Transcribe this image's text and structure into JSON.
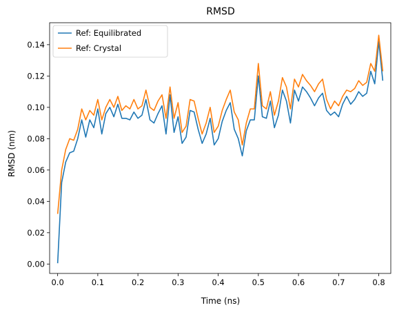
{
  "chart_data": {
    "type": "line",
    "title": "RMSD",
    "xlabel": "Time (ns)",
    "ylabel": "RMSD (nm)",
    "xlim": [
      -0.02,
      0.83
    ],
    "ylim": [
      -0.006,
      0.154
    ],
    "xticks": [
      0.0,
      0.1,
      0.2,
      0.3,
      0.4,
      0.5,
      0.6,
      0.7,
      0.8
    ],
    "xtick_labels": [
      "0.0",
      "0.1",
      "0.2",
      "0.3",
      "0.4",
      "0.5",
      "0.6",
      "0.7",
      "0.8"
    ],
    "yticks": [
      0.0,
      0.02,
      0.04,
      0.06,
      0.08,
      0.1,
      0.12,
      0.14
    ],
    "ytick_labels": [
      "0.00",
      "0.02",
      "0.04",
      "0.06",
      "0.08",
      "0.10",
      "0.12",
      "0.14"
    ],
    "legend_position": "upper-left",
    "grid": false,
    "x": [
      0.0,
      0.01,
      0.02,
      0.03,
      0.04,
      0.05,
      0.06,
      0.07,
      0.08,
      0.09,
      0.1,
      0.11,
      0.12,
      0.13,
      0.14,
      0.15,
      0.16,
      0.17,
      0.18,
      0.19,
      0.2,
      0.21,
      0.22,
      0.23,
      0.24,
      0.25,
      0.26,
      0.27,
      0.28,
      0.29,
      0.3,
      0.31,
      0.32,
      0.33,
      0.34,
      0.35,
      0.36,
      0.37,
      0.38,
      0.39,
      0.4,
      0.41,
      0.42,
      0.43,
      0.44,
      0.45,
      0.46,
      0.47,
      0.48,
      0.49,
      0.5,
      0.51,
      0.52,
      0.53,
      0.54,
      0.55,
      0.56,
      0.57,
      0.58,
      0.59,
      0.6,
      0.61,
      0.62,
      0.63,
      0.64,
      0.65,
      0.66,
      0.67,
      0.68,
      0.69,
      0.7,
      0.71,
      0.72,
      0.73,
      0.74,
      0.75,
      0.76,
      0.77,
      0.78,
      0.79,
      0.8,
      0.81
    ],
    "series": [
      {
        "name": "Ref: Equilibrated",
        "color": "#1f77b4",
        "values": [
          0.0005,
          0.052,
          0.065,
          0.071,
          0.072,
          0.08,
          0.092,
          0.081,
          0.092,
          0.087,
          0.099,
          0.083,
          0.096,
          0.1,
          0.094,
          0.102,
          0.093,
          0.093,
          0.092,
          0.097,
          0.093,
          0.095,
          0.105,
          0.092,
          0.09,
          0.096,
          0.101,
          0.083,
          0.108,
          0.084,
          0.094,
          0.077,
          0.081,
          0.098,
          0.097,
          0.086,
          0.077,
          0.083,
          0.093,
          0.076,
          0.08,
          0.091,
          0.098,
          0.103,
          0.086,
          0.08,
          0.069,
          0.085,
          0.092,
          0.092,
          0.12,
          0.094,
          0.093,
          0.104,
          0.087,
          0.095,
          0.111,
          0.104,
          0.09,
          0.111,
          0.104,
          0.113,
          0.11,
          0.106,
          0.101,
          0.106,
          0.109,
          0.098,
          0.095,
          0.097,
          0.094,
          0.102,
          0.107,
          0.102,
          0.105,
          0.11,
          0.107,
          0.109,
          0.123,
          0.115,
          0.142,
          0.117
        ]
      },
      {
        "name": "Ref: Crystal",
        "color": "#ff7f0e",
        "values": [
          0.032,
          0.06,
          0.073,
          0.08,
          0.079,
          0.086,
          0.099,
          0.092,
          0.098,
          0.095,
          0.105,
          0.092,
          0.1,
          0.105,
          0.1,
          0.107,
          0.098,
          0.101,
          0.099,
          0.105,
          0.099,
          0.101,
          0.111,
          0.1,
          0.098,
          0.104,
          0.108,
          0.093,
          0.113,
          0.093,
          0.103,
          0.084,
          0.088,
          0.105,
          0.104,
          0.093,
          0.083,
          0.09,
          0.1,
          0.084,
          0.088,
          0.098,
          0.105,
          0.111,
          0.097,
          0.092,
          0.076,
          0.09,
          0.099,
          0.099,
          0.128,
          0.101,
          0.099,
          0.11,
          0.095,
          0.104,
          0.119,
          0.113,
          0.099,
          0.118,
          0.113,
          0.121,
          0.117,
          0.114,
          0.11,
          0.115,
          0.118,
          0.105,
          0.099,
          0.104,
          0.101,
          0.107,
          0.111,
          0.11,
          0.112,
          0.117,
          0.114,
          0.116,
          0.128,
          0.123,
          0.146,
          0.123
        ]
      }
    ]
  }
}
